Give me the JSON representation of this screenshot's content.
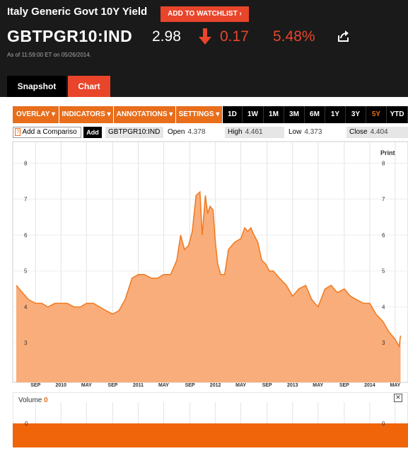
{
  "header": {
    "title": "Italy Generic Govt 10Y Yield",
    "watchlist_label": "ADD TO WATCHLIST",
    "ticker": "GBTPGR10:IND",
    "price": "2.98",
    "change": "0.17",
    "change_pct": "5.48%",
    "as_of": "As of 11:59:00 ET on 05/26/2014.",
    "accent_color": "#e8452b"
  },
  "tabs": [
    {
      "label": "Snapshot"
    },
    {
      "label": "Chart",
      "active": true
    }
  ],
  "toolbar": {
    "menus": [
      {
        "label": "OVERLAY ▾"
      },
      {
        "label": "INDICATORS ▾"
      },
      {
        "label": "ANNOTATIONS ▾"
      },
      {
        "label": "SETTINGS ▾"
      }
    ],
    "periods": [
      "1D",
      "1W",
      "1M",
      "3M",
      "6M",
      "1Y",
      "3Y",
      "5Y",
      "YTD"
    ],
    "active_period": "5Y"
  },
  "quote_row": {
    "compare_placeholder": "Add a Compariso",
    "add_label": "Add",
    "symbol": "GBTPGR10:IND",
    "open_label": "Open",
    "open_value": "4.378",
    "high_label": "High",
    "high_value": "4.461",
    "low_label": "Low",
    "low_value": "4.373",
    "close_label": "Close",
    "close_value": "4.404"
  },
  "print_label": "Print",
  "volume": {
    "label": "Volume",
    "value": "0",
    "axis_value": "0"
  },
  "chart_data": {
    "type": "area",
    "color": "#f0791f",
    "fill": "#f9ad7a",
    "ylim": [
      2.0,
      8.6
    ],
    "yticks": [
      "3",
      "4",
      "5",
      "6",
      "7",
      "8"
    ],
    "xticks": [
      "SEP",
      "2010",
      "MAY",
      "SEP",
      "2011",
      "MAY",
      "SEP",
      "2012",
      "MAY",
      "SEP",
      "2013",
      "MAY",
      "SEP",
      "2014",
      "MAY"
    ],
    "series": [
      {
        "x": [
          2009.42,
          2009.5,
          2009.58,
          2009.67,
          2009.75,
          2009.83,
          2009.92,
          2010.0,
          2010.08,
          2010.17,
          2010.25,
          2010.33,
          2010.42,
          2010.5,
          2010.58,
          2010.67,
          2010.75,
          2010.83,
          2010.92,
          2011.0,
          2011.08,
          2011.17,
          2011.25,
          2011.33,
          2011.42,
          2011.5,
          2011.55,
          2011.6,
          2011.65,
          2011.7,
          2011.75,
          2011.8,
          2011.83,
          2011.87,
          2011.9,
          2011.93,
          2011.97,
          2012.0,
          2012.03,
          2012.07,
          2012.12,
          2012.17,
          2012.25,
          2012.33,
          2012.38,
          2012.42,
          2012.46,
          2012.5,
          2012.55,
          2012.6,
          2012.65,
          2012.7,
          2012.75,
          2012.83,
          2012.92,
          2013.0,
          2013.08,
          2013.17,
          2013.25,
          2013.33,
          2013.42,
          2013.5,
          2013.58,
          2013.67,
          2013.75,
          2013.83,
          2013.92,
          2014.0,
          2014.08,
          2014.17,
          2014.25,
          2014.33,
          2014.38,
          2014.4
        ],
        "values": [
          4.6,
          4.4,
          4.2,
          4.1,
          4.1,
          4.0,
          4.1,
          4.1,
          4.1,
          4.0,
          4.0,
          4.1,
          4.1,
          4.0,
          3.9,
          3.8,
          3.9,
          4.2,
          4.8,
          4.9,
          4.9,
          4.8,
          4.8,
          4.9,
          4.9,
          5.3,
          6.0,
          5.6,
          5.7,
          6.1,
          7.1,
          7.2,
          6.0,
          7.1,
          6.6,
          6.8,
          6.7,
          5.8,
          5.2,
          4.9,
          4.9,
          5.6,
          5.8,
          5.9,
          6.2,
          6.1,
          6.2,
          6.0,
          5.8,
          5.3,
          5.2,
          5.0,
          5.0,
          4.8,
          4.6,
          4.3,
          4.5,
          4.6,
          4.2,
          4.0,
          4.5,
          4.6,
          4.4,
          4.5,
          4.3,
          4.2,
          4.1,
          4.1,
          3.8,
          3.6,
          3.3,
          3.1,
          2.9,
          3.2
        ]
      }
    ]
  }
}
